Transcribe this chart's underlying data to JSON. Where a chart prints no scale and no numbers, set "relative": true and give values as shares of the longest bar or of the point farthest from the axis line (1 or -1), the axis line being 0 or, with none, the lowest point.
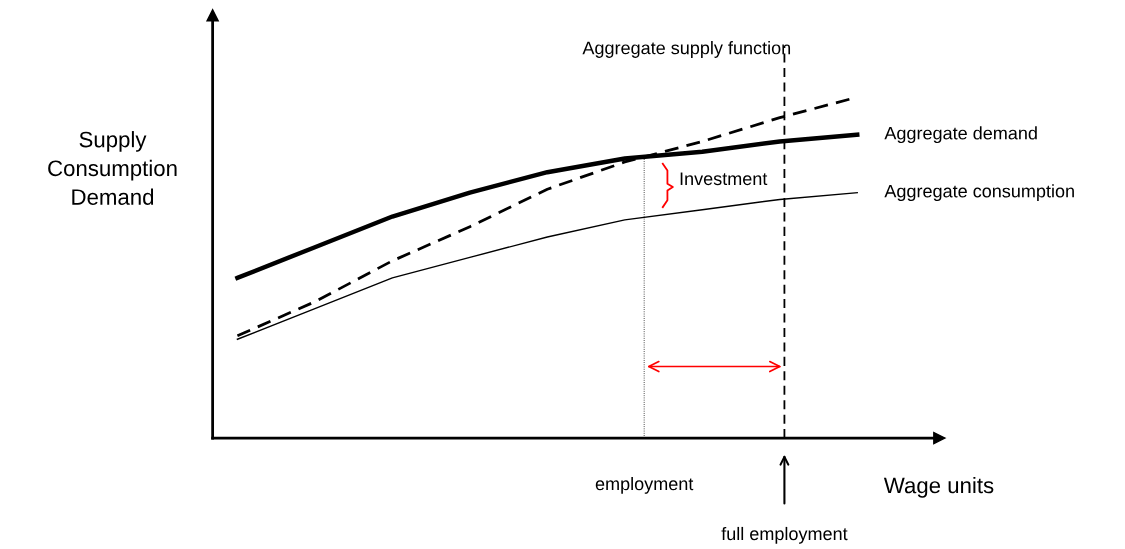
{
  "chart_data": {
    "type": "line",
    "relative": true,
    "xlabel": "Wage units",
    "ylabel": "Supply\nConsumption\nDemand",
    "categories": [
      null,
      null,
      null,
      null,
      null,
      null,
      null,
      null,
      null
    ],
    "series": [
      {
        "name": "Aggregate demand",
        "color": "#000000",
        "line_style": "solid",
        "values": [
          0.47,
          0.56,
          0.65,
          0.72,
          0.78,
          0.82,
          0.84,
          0.87,
          0.89
        ]
      },
      {
        "color": "#000000",
        "line_style": "dashed",
        "values": [
          0.3,
          0.4,
          0.52,
          0.62,
          0.73,
          0.81,
          0.87,
          0.94,
          1.0
        ]
      },
      {
        "name": "Aggregate consumption",
        "color": "#000000",
        "line_style": "solid",
        "values": [
          0.29,
          0.38,
          0.47,
          0.53,
          0.59,
          0.64,
          0.67,
          0.7,
          0.72
        ]
      }
    ],
    "annotations": [
      "Investment",
      "employment",
      "full employment",
      "Aggregate supply function"
    ],
    "legend": false,
    "marker": "none"
  }
}
